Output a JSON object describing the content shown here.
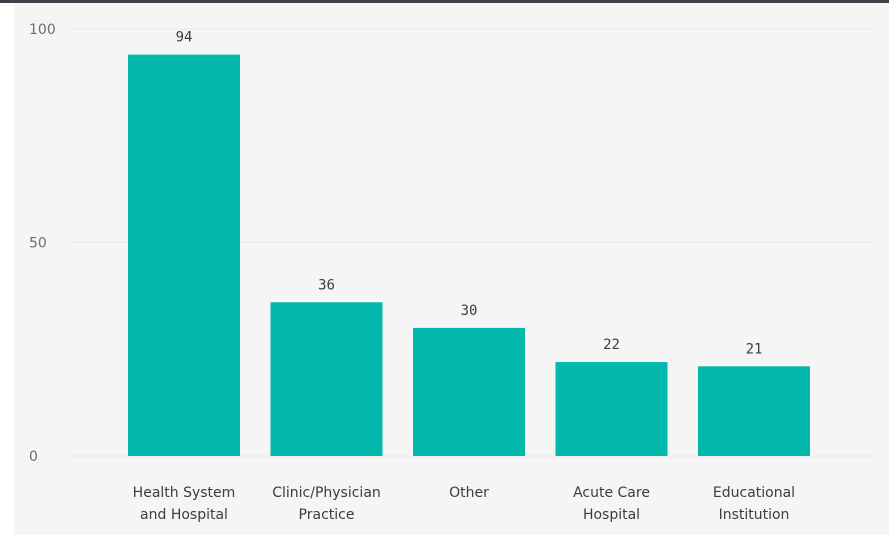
{
  "chart_data": {
    "type": "bar",
    "categories": [
      [
        "Health System",
        "and Hospital"
      ],
      [
        "Clinic/Physician",
        "Practice"
      ],
      [
        "Other"
      ],
      [
        "Acute Care",
        "Hospital"
      ],
      [
        "Educational",
        "Institution"
      ]
    ],
    "values": [
      94,
      36,
      30,
      22,
      21
    ],
    "data_labels": [
      "94",
      "36",
      "30",
      "22",
      "21"
    ],
    "ylim": [
      0,
      100
    ],
    "yticks": [
      0,
      50,
      100
    ],
    "ytick_labels": [
      "0",
      "50",
      "100"
    ],
    "title": "",
    "xlabel": "",
    "ylabel": "",
    "grid": true,
    "legend": "none",
    "colors": {
      "bar": "#01b8aa",
      "grid": "#e6e6e6",
      "background": "#f5f5f5",
      "frame": "#3a4148"
    }
  }
}
